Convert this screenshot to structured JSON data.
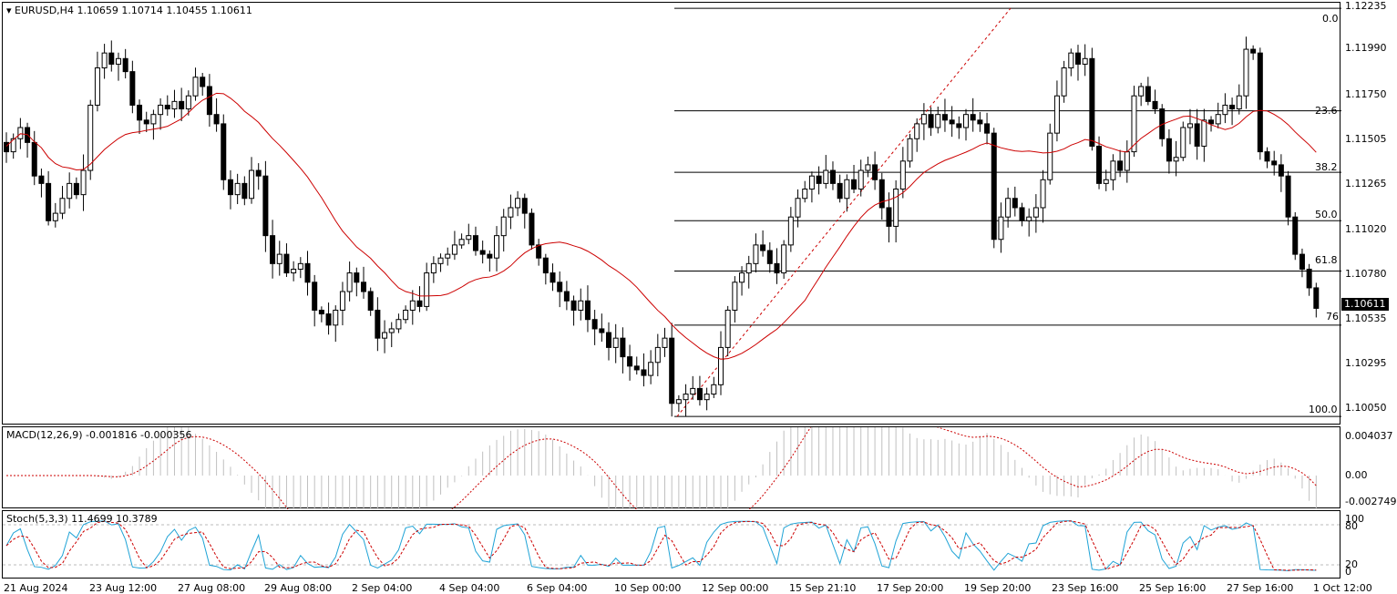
{
  "chart_title": "EURUSD,H4  1.10659 1.10714 1.10455 1.10611",
  "current_price": "1.10611",
  "price_axis": [
    "1.12235",
    "1.11990",
    "1.11750",
    "1.11505",
    "1.11265",
    "1.11020",
    "1.10780",
    "1.10535",
    "1.10295",
    "1.10050"
  ],
  "fib_levels": [
    "0.0",
    "23.6",
    "38.2",
    "50.0",
    "61.8",
    "76",
    "100.0"
  ],
  "macd": {
    "label": "MACD(12,26,9) -0.001816 -0.000356",
    "axis": [
      "0.004037",
      "0.00",
      "-0.002749"
    ]
  },
  "stoch": {
    "label": "Stoch(5,3,3) 11.4699 10.3789",
    "axis": [
      "100",
      "80",
      "20",
      "0"
    ]
  },
  "time_axis": [
    "21 Aug 2024",
    "23 Aug 12:00",
    "27 Aug 08:00",
    "29 Aug 08:00",
    "2 Sep 04:00",
    "4 Sep 04:00",
    "6 Sep 04:00",
    "10 Sep 00:00",
    "12 Sep 00:00",
    "15 Sep 21:10",
    "17 Sep 20:00",
    "19 Sep 20:00",
    "23 Sep 16:00",
    "25 Sep 16:00",
    "27 Sep 16:00",
    "1 Oct 12:00"
  ],
  "colors": {
    "background": "#ffffff",
    "candle": "#000000",
    "ma": "#cc0000",
    "macd_hist": "#c0c0c0",
    "signal": "#cc0000",
    "stoch_main": "#1fa3d6",
    "stoch_signal": "#cc0000"
  },
  "chart_data": {
    "type": "candlestick",
    "symbol": "EURUSD",
    "timeframe": "H4",
    "ohlc_last": {
      "open": 1.10659,
      "high": 1.10714,
      "low": 1.10455,
      "close": 1.10611
    },
    "ylim": [
      1.1005,
      1.12235
    ],
    "closes": [
      1.1145,
      1.1152,
      1.1158,
      1.115,
      1.1132,
      1.1128,
      1.1108,
      1.1112,
      1.112,
      1.1128,
      1.1122,
      1.1135,
      1.117,
      1.119,
      1.1198,
      1.1192,
      1.1195,
      1.1188,
      1.117,
      1.1162,
      1.116,
      1.1165,
      1.117,
      1.1168,
      1.1172,
      1.1168,
      1.1175,
      1.1185,
      1.118,
      1.1165,
      1.116,
      1.113,
      1.1122,
      1.1128,
      1.112,
      1.1135,
      1.1132,
      1.11,
      1.1085,
      1.109,
      1.108,
      1.1082,
      1.1085,
      1.1075,
      1.106,
      1.1058,
      1.1052,
      1.106,
      1.107,
      1.108,
      1.1075,
      1.107,
      1.106,
      1.1045,
      1.1048,
      1.105,
      1.1055,
      1.106,
      1.1065,
      1.1062,
      1.108,
      1.1085,
      1.1088,
      1.109,
      1.1095,
      1.1098,
      1.11,
      1.1092,
      1.109,
      1.1088,
      1.11,
      1.111,
      1.1115,
      1.112,
      1.1112,
      1.1095,
      1.1088,
      1.108,
      1.1075,
      1.107,
      1.1065,
      1.106,
      1.1065,
      1.1055,
      1.105,
      1.1048,
      1.104,
      1.1045,
      1.1035,
      1.103,
      1.1028,
      1.1025,
      1.1032,
      1.104,
      1.1045,
      1.101,
      1.1012,
      1.1015,
      1.1018,
      1.1012,
      1.1015,
      1.102,
      1.104,
      1.106,
      1.1075,
      1.108,
      1.1085,
      1.1095,
      1.1092,
      1.1085,
      1.108,
      1.1095,
      1.111,
      1.112,
      1.1125,
      1.1132,
      1.1128,
      1.1135,
      1.1128,
      1.112,
      1.113,
      1.1125,
      1.1135,
      1.1138,
      1.113,
      1.1115,
      1.1105,
      1.1125,
      1.114,
      1.1152,
      1.116,
      1.1165,
      1.1158,
      1.1165,
      1.1162,
      1.116,
      1.1158,
      1.1165,
      1.1162,
      1.116,
      1.1155,
      1.1098,
      1.111,
      1.112,
      1.1115,
      1.1108,
      1.111,
      1.1115,
      1.113,
      1.1155,
      1.1175,
      1.119,
      1.1198,
      1.1192,
      1.1195,
      1.1148,
      1.1128,
      1.113,
      1.114,
      1.1135,
      1.1145,
      1.1175,
      1.118,
      1.1172,
      1.1168,
      1.1152,
      1.114,
      1.1142,
      1.1158,
      1.116,
      1.1148,
      1.1162,
      1.116,
      1.1165,
      1.117,
      1.1168,
      1.1175,
      1.12,
      1.1198,
      1.1145,
      1.114,
      1.1138,
      1.1132,
      1.111,
      1.109,
      1.1082,
      1.1072,
      1.1061
    ]
  }
}
